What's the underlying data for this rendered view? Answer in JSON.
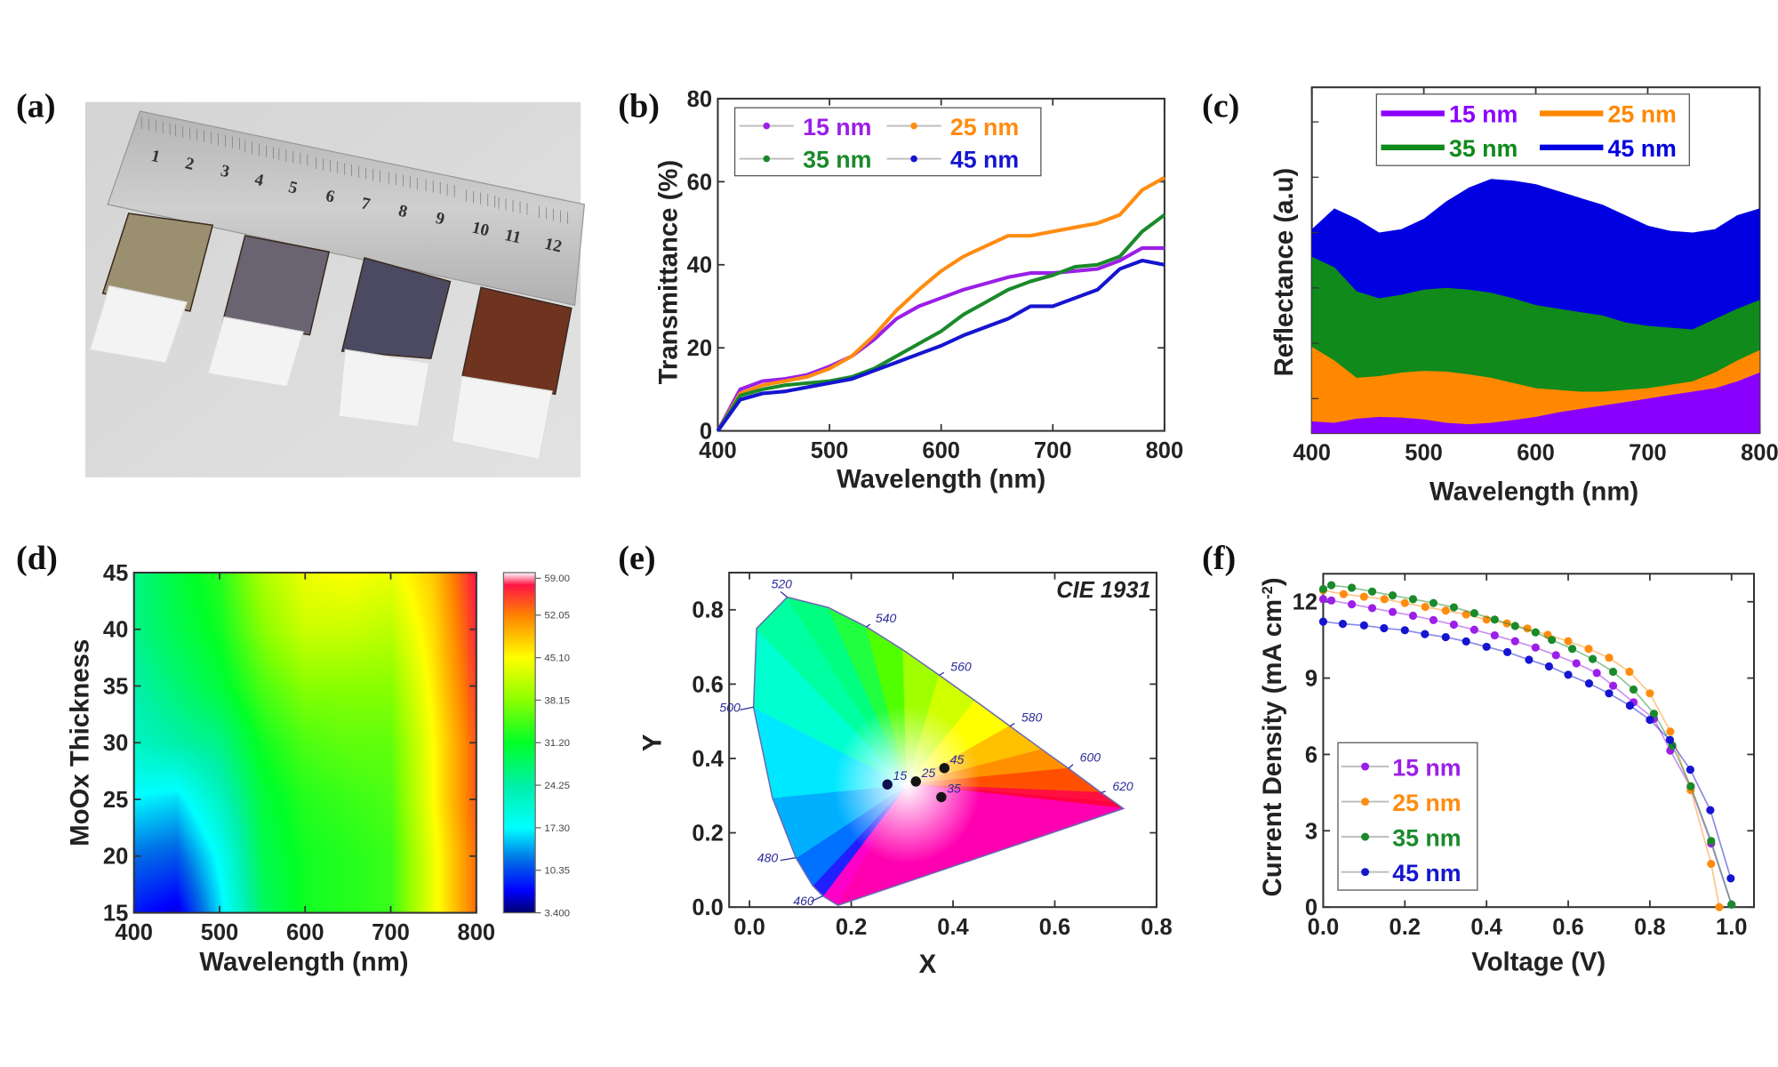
{
  "figure": {
    "panel_labels": [
      "(a)",
      "(b)",
      "(c)",
      "(d)",
      "(e)",
      "(f)"
    ]
  },
  "photo": {
    "ruler_numbers": [
      "1",
      "2",
      "3",
      "4",
      "5",
      "6",
      "7",
      "8",
      "9",
      "10",
      "11",
      "12"
    ],
    "sample_film_colors": [
      "#9a9070",
      "#6a6472",
      "#4c4a62",
      "#6e3420"
    ]
  },
  "chart_data": [
    {
      "panel": "(b)",
      "type": "line",
      "xlabel": "Wavelength (nm)",
      "ylabel": "Transmittance (%)",
      "xlim": [
        400,
        800
      ],
      "ylim": [
        0,
        80
      ],
      "xticks": [
        "400",
        "500",
        "600",
        "700",
        "800"
      ],
      "yticks": [
        "0",
        "20",
        "40",
        "60",
        "80"
      ],
      "legend": "top-left",
      "x": [
        400,
        420,
        440,
        460,
        480,
        500,
        520,
        540,
        560,
        580,
        600,
        620,
        640,
        660,
        680,
        700,
        720,
        740,
        760,
        780,
        800
      ],
      "series": [
        {
          "name": "15 nm",
          "color": "#9b1fe8",
          "values": [
            0,
            10,
            12,
            12.5,
            13.5,
            15.5,
            18,
            22,
            27,
            30,
            32,
            34,
            35.5,
            37,
            38,
            38,
            38.5,
            39,
            41,
            44,
            44
          ]
        },
        {
          "name": "25 nm",
          "color": "#ff8c10",
          "values": [
            0,
            9,
            11,
            12,
            13,
            15,
            18,
            23,
            29,
            34,
            38.5,
            42,
            44.5,
            47,
            47,
            48,
            49,
            50,
            52,
            58,
            61
          ]
        },
        {
          "name": "35 nm",
          "color": "#1a8a2a",
          "values": [
            0,
            8.5,
            10,
            11,
            11.5,
            12,
            13,
            15,
            18,
            21,
            24,
            28,
            31,
            34,
            36,
            37.5,
            39.5,
            40,
            42,
            48,
            52
          ]
        },
        {
          "name": "45 nm",
          "color": "#1515d0",
          "values": [
            0,
            7.5,
            9,
            9.5,
            10.5,
            11.5,
            12.5,
            14.5,
            16.5,
            18.5,
            20.5,
            23,
            25,
            27,
            30,
            30,
            32,
            34,
            39,
            41,
            40
          ]
        }
      ]
    },
    {
      "panel": "(c)",
      "type": "area",
      "xlabel": "Wavelength (nm)",
      "ylabel": "Reflectance (a.u)",
      "xlim": [
        400,
        800
      ],
      "ylim": [
        0,
        100
      ],
      "y_tick_labels_shown": false,
      "xticks": [
        "400",
        "500",
        "600",
        "700",
        "800"
      ],
      "legend": "top-center",
      "x": [
        400,
        420,
        440,
        460,
        480,
        500,
        520,
        540,
        560,
        580,
        600,
        620,
        640,
        660,
        680,
        700,
        720,
        740,
        760,
        780,
        800
      ],
      "series": [
        {
          "name": "45 nm",
          "color": "#0000e0",
          "values": [
            59,
            65,
            62,
            58,
            59,
            62,
            67,
            71,
            73.5,
            73,
            72,
            70,
            68,
            66,
            63,
            60,
            58.5,
            58,
            59,
            63,
            65
          ]
        },
        {
          "name": "35 nm",
          "color": "#108a1a",
          "values": [
            51,
            48,
            41,
            39,
            40,
            41.5,
            42,
            41.5,
            40.6,
            39,
            37,
            36,
            35,
            34,
            32,
            31,
            30.5,
            30,
            33,
            36,
            38.5
          ]
        },
        {
          "name": "25 nm",
          "color": "#ff8800",
          "values": [
            25,
            21,
            16,
            16.5,
            17.5,
            18,
            17.8,
            17,
            16,
            14.5,
            13,
            12.5,
            12,
            12,
            12.5,
            13,
            14,
            15,
            17.5,
            21,
            24
          ]
        },
        {
          "name": "15 nm",
          "color": "#8a00ff",
          "values": [
            3.4,
            3,
            4.2,
            4.7,
            4.5,
            4,
            3,
            2.6,
            3,
            3.8,
            4.7,
            6,
            7,
            8,
            9,
            10,
            11,
            12,
            13,
            15,
            17.5
          ]
        }
      ],
      "legend_order": [
        "15 nm",
        "25 nm",
        "35 nm",
        "45 nm"
      ]
    },
    {
      "panel": "(d)",
      "type": "heatmap",
      "xlabel": "Wavelength (nm)",
      "ylabel": "MoOx Thickness",
      "xlim": [
        400,
        800
      ],
      "ylim": [
        15,
        45
      ],
      "xticks": [
        "400",
        "500",
        "600",
        "700",
        "800"
      ],
      "yticks": [
        "15",
        "20",
        "25",
        "30",
        "35",
        "40",
        "45"
      ],
      "x": [
        400,
        450,
        500,
        550,
        600,
        650,
        700,
        750,
        800
      ],
      "y": [
        15,
        20,
        25,
        30,
        35,
        40,
        45
      ],
      "z": [
        [
          8,
          6,
          16,
          28,
          32,
          33,
          34,
          44,
          53
        ],
        [
          12,
          11,
          18,
          29,
          32,
          33,
          34,
          44,
          53
        ],
        [
          17,
          16,
          22,
          30,
          33,
          34,
          35,
          45,
          54
        ],
        [
          22,
          24,
          26,
          32,
          35,
          36,
          36,
          45,
          54
        ],
        [
          24,
          27,
          30,
          35,
          38,
          38,
          38,
          46,
          55
        ],
        [
          26,
          29,
          32,
          38,
          42,
          42,
          41,
          47,
          56
        ],
        [
          26,
          30,
          33,
          40,
          44,
          45,
          44,
          48,
          57
        ]
      ],
      "clim": [
        3.4,
        59
      ],
      "colorbar_ticks": [
        "3.400",
        "10.35",
        "17.30",
        "24.25",
        "31.20",
        "38.15",
        "45.10",
        "52.05",
        "59.00"
      ]
    },
    {
      "panel": "(e)",
      "type": "scatter",
      "annotation": "CIE 1931",
      "xlabel": "X",
      "ylabel": "Y",
      "xlim": [
        -0.04,
        0.8
      ],
      "ylim": [
        0,
        0.9
      ],
      "xticks": [
        "0.0",
        "0.2",
        "0.4",
        "0.6",
        "0.8"
      ],
      "yticks": [
        "0.0",
        "0.2",
        "0.4",
        "0.6",
        "0.8"
      ],
      "wavelength_labels": [
        "460",
        "480",
        "500",
        "520",
        "540",
        "560",
        "580",
        "600",
        "620"
      ],
      "points": [
        {
          "label": "15",
          "x": 0.271,
          "y": 0.33
        },
        {
          "label": "25",
          "x": 0.327,
          "y": 0.338
        },
        {
          "label": "45",
          "x": 0.383,
          "y": 0.374
        },
        {
          "label": "35",
          "x": 0.377,
          "y": 0.296
        }
      ]
    },
    {
      "panel": "(f)",
      "type": "line",
      "xlabel": "Voltage (V)",
      "ylabel": "Current Density (mA cm",
      "ylabel_sup": "-2",
      "ylabel_end": ")",
      "xlim": [
        0,
        1.055
      ],
      "ylim": [
        0,
        13.1
      ],
      "xticks": [
        "0.0",
        "0.2",
        "0.4",
        "0.6",
        "0.8",
        "1.0"
      ],
      "yticks": [
        "0",
        "3",
        "6",
        "9",
        "12"
      ],
      "legend": "bottom-left",
      "series": [
        {
          "name": "15 nm",
          "color": "#9b1fe8",
          "x": [
            0,
            0.02,
            0.07,
            0.12,
            0.17,
            0.22,
            0.27,
            0.32,
            0.37,
            0.42,
            0.47,
            0.52,
            0.57,
            0.62,
            0.67,
            0.71,
            0.76,
            0.81,
            0.85,
            0.9,
            0.95,
            1.0
          ],
          "y": [
            12.1,
            12.05,
            11.9,
            11.75,
            11.6,
            11.45,
            11.28,
            11.1,
            10.9,
            10.68,
            10.45,
            10.2,
            9.9,
            9.58,
            9.2,
            8.7,
            8.05,
            7.4,
            6.15,
            4.7,
            2.5,
            0.1
          ]
        },
        {
          "name": "25 nm",
          "color": "#ff8c10",
          "x": [
            0,
            0.05,
            0.1,
            0.15,
            0.2,
            0.25,
            0.3,
            0.35,
            0.4,
            0.45,
            0.5,
            0.55,
            0.6,
            0.65,
            0.7,
            0.75,
            0.8,
            0.85,
            0.9,
            0.95,
            0.97
          ],
          "y": [
            12.45,
            12.3,
            12.2,
            12.1,
            11.95,
            11.8,
            11.65,
            11.5,
            11.3,
            11.15,
            10.95,
            10.7,
            10.45,
            10.15,
            9.8,
            9.25,
            8.4,
            6.9,
            4.6,
            1.7,
            0
          ]
        },
        {
          "name": "35 nm",
          "color": "#1a8a2a",
          "x": [
            0,
            0.02,
            0.07,
            0.12,
            0.17,
            0.22,
            0.27,
            0.32,
            0.37,
            0.42,
            0.47,
            0.52,
            0.56,
            0.61,
            0.66,
            0.71,
            0.76,
            0.81,
            0.855,
            0.9,
            0.95,
            1.0
          ],
          "y": [
            12.5,
            12.65,
            12.55,
            12.4,
            12.25,
            12.1,
            11.95,
            11.78,
            11.55,
            11.3,
            11.05,
            10.8,
            10.5,
            10.15,
            9.75,
            9.25,
            8.55,
            7.6,
            6.35,
            4.75,
            2.6,
            0.1
          ]
        },
        {
          "name": "45 nm",
          "color": "#1515d0",
          "x": [
            0,
            0.048,
            0.1,
            0.149,
            0.2,
            0.249,
            0.3,
            0.35,
            0.4,
            0.451,
            0.504,
            0.553,
            0.6,
            0.651,
            0.7,
            0.751,
            0.8,
            0.849,
            0.899,
            0.948,
            0.998
          ],
          "y": [
            11.22,
            11.13,
            11.07,
            10.96,
            10.88,
            10.73,
            10.61,
            10.44,
            10.23,
            10.02,
            9.72,
            9.46,
            9.13,
            8.79,
            8.4,
            7.92,
            7.36,
            6.57,
            5.4,
            3.81,
            1.13
          ]
        }
      ]
    }
  ]
}
